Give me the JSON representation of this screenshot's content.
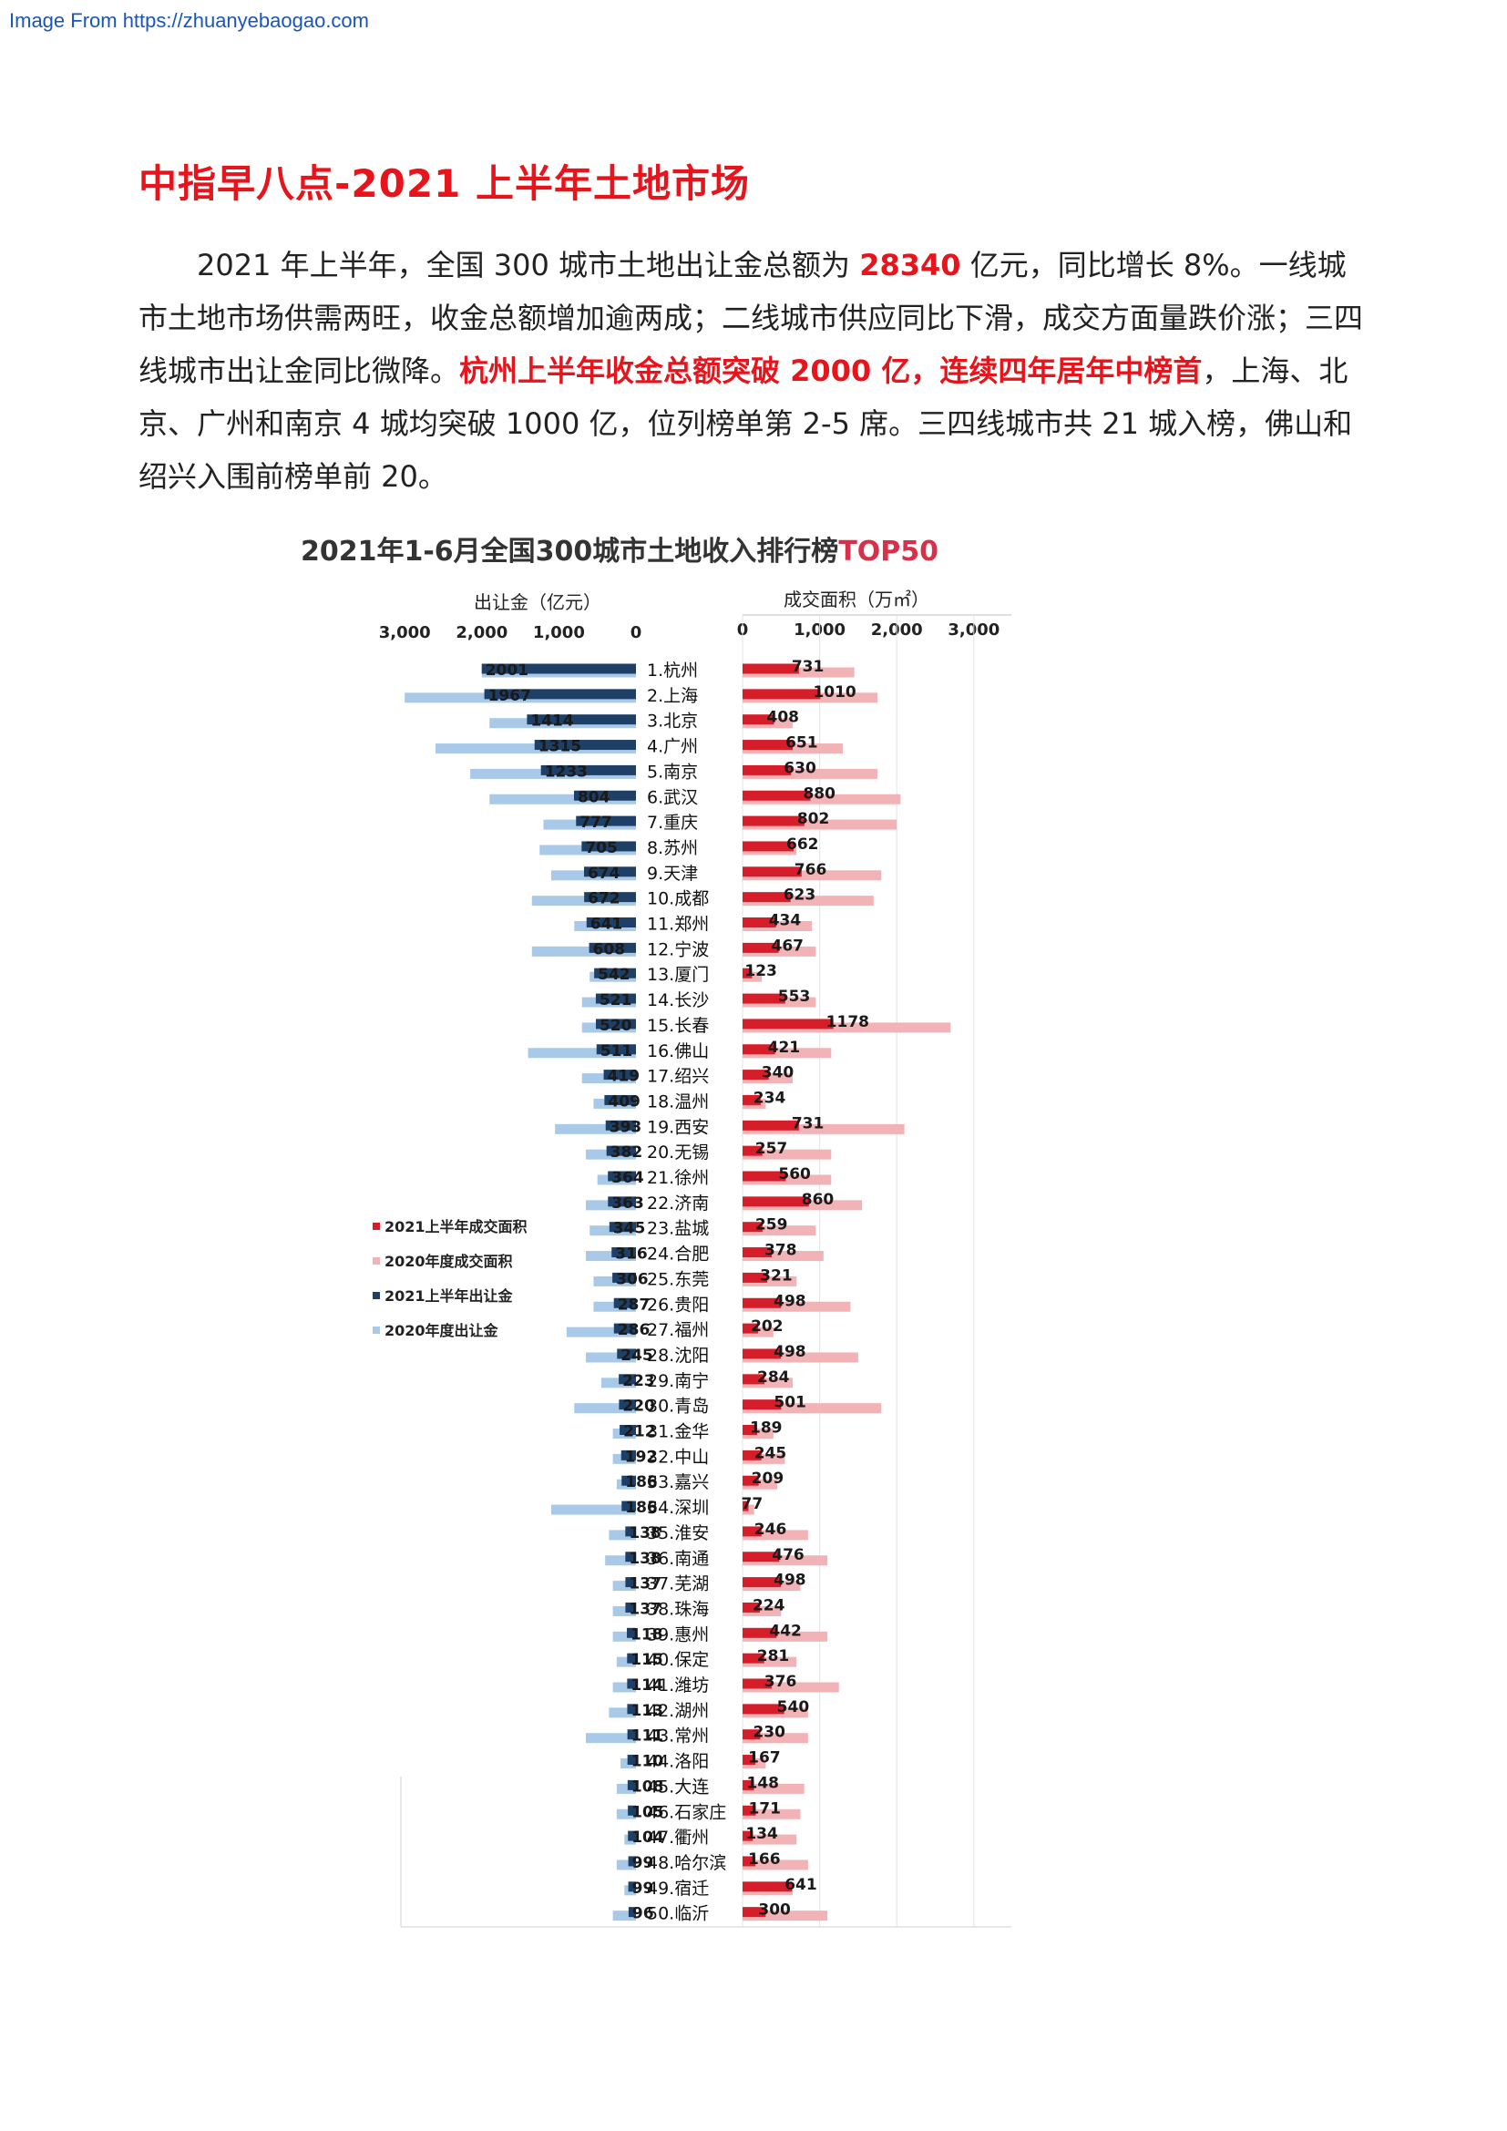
{
  "source_text": "Image From https://zhuanyebaogao.com",
  "heading": "中指早八点-2021 上半年土地市场",
  "intro": {
    "p1": "2021 年上半年，全国 300 城市土地出让金总额为 ",
    "total": "28340",
    "p2": " 亿元，同比增长 8%。一线城市土地市场供需两旺，收金总额增加逾两成；二线城市供应同比下滑，成交方面量跌价涨；三四线城市出让金同比微降。",
    "highlight": "杭州上半年收金总额突破 2000 亿，连续四年居年中榜首",
    "p3": "，上海、北京、广州和南京 4 城均突破 1000 亿，位列榜单第 2-5 席。三四线城市共 21 城入榜，佛山和绍兴入围前榜单前 20。"
  },
  "chart_title": {
    "main": "2021年1-6月全国300城市土地收入排行榜",
    "accent": "TOP50"
  },
  "chart_data": {
    "type": "bar",
    "left_axis": {
      "label": "出让金（亿元）",
      "ticks": [
        "3,000",
        "2,000",
        "1,000",
        "0"
      ],
      "range": [
        0,
        3000
      ]
    },
    "right_axis": {
      "label": "成交面积（万㎡）",
      "ticks": [
        "0",
        "1,000",
        "2,000",
        "3,000"
      ],
      "range": [
        0,
        3000
      ]
    },
    "legend": {
      "placement": "left-middle",
      "items": [
        {
          "label": "2021上半年成交面积",
          "color": "#d61e2b"
        },
        {
          "label": "2020年度成交面积",
          "color": "#f2b3b6"
        },
        {
          "label": "2021上半年出让金",
          "color": "#1e3f66"
        },
        {
          "label": "2020年度出让金",
          "color": "#a8c9e8"
        }
      ]
    },
    "categories": [
      "1.杭州",
      "2.上海",
      "3.北京",
      "4.广州",
      "5.南京",
      "6.武汉",
      "7.重庆",
      "8.苏州",
      "9.天津",
      "10.成都",
      "11.郑州",
      "12.宁波",
      "13.厦门",
      "14.长沙",
      "15.长春",
      "16.佛山",
      "17.绍兴",
      "18.温州",
      "19.西安",
      "20.无锡",
      "21.徐州",
      "22.济南",
      "23.盐城",
      "24.合肥",
      "25.东莞",
      "26.贵阳",
      "27.福州",
      "28.沈阳",
      "29.南宁",
      "30.青岛",
      "31.金华",
      "32.中山",
      "33.嘉兴",
      "34.深圳",
      "35.淮安",
      "36.南通",
      "37.芜湖",
      "38.珠海",
      "39.惠州",
      "40.保定",
      "41.潍坊",
      "42.湖州",
      "43.常州",
      "44.洛阳",
      "45.大连",
      "46.石家庄",
      "47.衢州",
      "48.哈尔滨",
      "49.宿迁",
      "50.临沂"
    ],
    "series": [
      {
        "name": "2021上半年出让金",
        "values": [
          2001,
          1967,
          1414,
          1315,
          1233,
          804,
          777,
          705,
          674,
          672,
          641,
          608,
          542,
          521,
          520,
          511,
          419,
          409,
          393,
          382,
          364,
          363,
          345,
          316,
          306,
          287,
          286,
          245,
          223,
          220,
          212,
          192,
          186,
          186,
          138,
          138,
          137,
          137,
          118,
          115,
          114,
          113,
          111,
          110,
          108,
          105,
          104,
          99,
          99,
          96
        ]
      },
      {
        "name": "2020年度出让金",
        "values": [
          2000,
          3000,
          1900,
          2600,
          2150,
          1900,
          1200,
          1250,
          1100,
          1350,
          800,
          1350,
          600,
          700,
          700,
          1400,
          700,
          550,
          1050,
          650,
          500,
          650,
          600,
          650,
          550,
          550,
          900,
          650,
          450,
          800,
          300,
          300,
          250,
          1100,
          350,
          400,
          300,
          300,
          300,
          250,
          300,
          350,
          650,
          200,
          250,
          250,
          150,
          250,
          150,
          300
        ]
      },
      {
        "name": "2021上半年成交面积",
        "values": [
          731,
          1010,
          408,
          651,
          630,
          880,
          802,
          662,
          766,
          623,
          434,
          467,
          123,
          553,
          1178,
          421,
          340,
          234,
          731,
          257,
          560,
          860,
          259,
          378,
          321,
          498,
          202,
          498,
          284,
          501,
          189,
          245,
          209,
          77,
          246,
          476,
          498,
          224,
          442,
          281,
          376,
          540,
          230,
          167,
          148,
          171,
          134,
          166,
          641,
          300
        ]
      },
      {
        "name": "2020年度成交面积",
        "values": [
          1450,
          1750,
          650,
          1300,
          1750,
          2050,
          2000,
          700,
          1800,
          1700,
          900,
          950,
          250,
          950,
          2700,
          1150,
          650,
          300,
          2100,
          1150,
          1150,
          1550,
          950,
          1050,
          700,
          1400,
          400,
          1500,
          650,
          1800,
          400,
          550,
          450,
          150,
          850,
          1100,
          750,
          500,
          1100,
          700,
          1250,
          850,
          850,
          300,
          800,
          750,
          700,
          850,
          650,
          1100
        ]
      }
    ]
  }
}
